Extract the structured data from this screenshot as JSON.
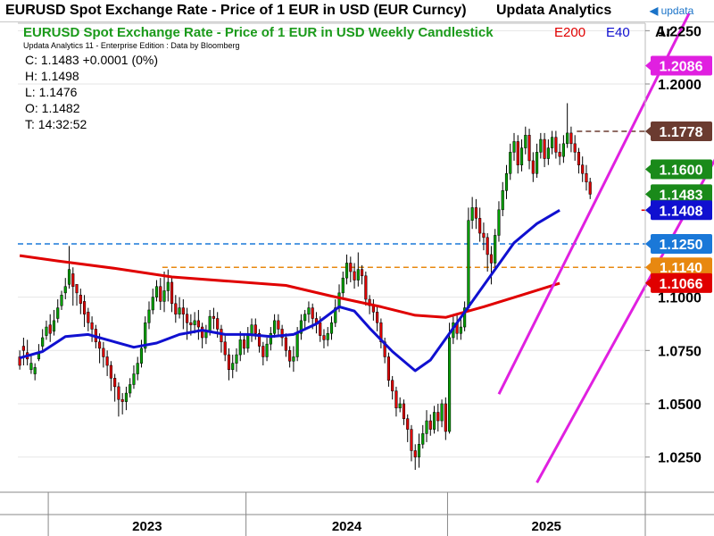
{
  "header": {
    "title": "EURUSD Spot Exchange Rate - Price of 1 EUR in USD (EUR Curncy)",
    "brand": "Updata Analytics",
    "logo_text": "updata"
  },
  "panel": {
    "subtitle": "EURUSD Spot Exchange Rate - Price of 1 EUR in USD Weekly Candlestick",
    "credit": "Updata Analytics 11 - Enterprise Edition : Data by Bloomberg",
    "legend": [
      {
        "name": "E200",
        "color": "#e00000"
      },
      {
        "name": "E40",
        "color": "#1010d0"
      }
    ],
    "axis_corner": "Ar"
  },
  "ohlc": {
    "close": "C: 1.1483 +0.0001 (0%)",
    "high": "H: 1.1498",
    "low": "L: 1.1476",
    "open": "O: 1.1482",
    "time": "T: 14:32:52"
  },
  "colors": {
    "up": "#00a000",
    "down": "#e00000",
    "wick": "#000000",
    "channel": "#e020e0",
    "grid": "#e6e6e6"
  },
  "chart_data": {
    "type": "candlestick",
    "title": "EURUSD Spot Exchange Rate - Price of 1 EUR in USD Weekly Candlestick",
    "y_ticks": [
      1.025,
      1.05,
      1.075,
      1.1,
      1.2,
      1.225
    ],
    "y_tick_labels": [
      "1.0250",
      "1.0500",
      "1.0750",
      "1.1000",
      "1.2000",
      "1.2250"
    ],
    "ylim": [
      1.0085,
      1.2285
    ],
    "x_labels": [
      "2023",
      "2024",
      "2025"
    ],
    "x_boundaries_week": [
      8,
      60,
      113,
      165
    ],
    "weeks": 165,
    "series": [
      {
        "name": "E200",
        "color": "#e00000",
        "points": [
          [
            0,
            1.1195
          ],
          [
            10,
            1.117
          ],
          [
            25,
            1.1135
          ],
          [
            40,
            1.1095
          ],
          [
            55,
            1.1075
          ],
          [
            70,
            1.1055
          ],
          [
            82,
            1.1005
          ],
          [
            95,
            1.0955
          ],
          [
            104,
            1.0915
          ],
          [
            112,
            1.0905
          ],
          [
            122,
            1.0955
          ],
          [
            132,
            1.101
          ],
          [
            142,
            1.1065
          ]
        ]
      },
      {
        "name": "E40",
        "color": "#1010d0",
        "points": [
          [
            0,
            1.0715
          ],
          [
            6,
            1.0745
          ],
          [
            12,
            1.0815
          ],
          [
            18,
            1.0825
          ],
          [
            24,
            1.0795
          ],
          [
            30,
            1.0765
          ],
          [
            36,
            1.0785
          ],
          [
            42,
            1.0825
          ],
          [
            48,
            1.0845
          ],
          [
            54,
            1.0825
          ],
          [
            60,
            1.0825
          ],
          [
            66,
            1.0815
          ],
          [
            72,
            1.0825
          ],
          [
            78,
            1.0875
          ],
          [
            84,
            1.0955
          ],
          [
            88,
            1.0935
          ],
          [
            92,
            1.0855
          ],
          [
            98,
            1.0745
          ],
          [
            104,
            1.0655
          ],
          [
            108,
            1.0705
          ],
          [
            112,
            1.0805
          ],
          [
            118,
            1.0955
          ],
          [
            124,
            1.1105
          ],
          [
            130,
            1.1255
          ],
          [
            136,
            1.1345
          ],
          [
            142,
            1.1408
          ]
        ]
      }
    ],
    "candles": [
      [
        1.072,
        1.068,
        1.066,
        1.075
      ],
      [
        1.077,
        1.075,
        1.068,
        1.081
      ],
      [
        1.074,
        1.071,
        1.068,
        1.08
      ],
      [
        1.066,
        1.069,
        1.064,
        1.073
      ],
      [
        1.064,
        1.067,
        1.061,
        1.069
      ],
      [
        1.071,
        1.074,
        1.07,
        1.078
      ],
      [
        1.077,
        1.081,
        1.075,
        1.085
      ],
      [
        1.082,
        1.086,
        1.08,
        1.089
      ],
      [
        1.087,
        1.083,
        1.079,
        1.092
      ],
      [
        1.084,
        1.089,
        1.082,
        1.094
      ],
      [
        1.09,
        1.095,
        1.088,
        1.099
      ],
      [
        1.096,
        1.101,
        1.094,
        1.103
      ],
      [
        1.102,
        1.105,
        1.099,
        1.109
      ],
      [
        1.106,
        1.113,
        1.104,
        1.124
      ],
      [
        1.111,
        1.105,
        1.096,
        1.114
      ],
      [
        1.106,
        1.102,
        1.096,
        1.106
      ],
      [
        1.101,
        1.097,
        1.092,
        1.104
      ],
      [
        1.098,
        1.092,
        1.086,
        1.101
      ],
      [
        1.093,
        1.088,
        1.084,
        1.095
      ],
      [
        1.088,
        1.085,
        1.079,
        1.091
      ],
      [
        1.085,
        1.079,
        1.076,
        1.087
      ],
      [
        1.079,
        1.076,
        1.069,
        1.083
      ],
      [
        1.076,
        1.072,
        1.067,
        1.079
      ],
      [
        1.072,
        1.068,
        1.063,
        1.075
      ],
      [
        1.068,
        1.062,
        1.056,
        1.07
      ],
      [
        1.062,
        1.058,
        1.051,
        1.064
      ],
      [
        1.058,
        1.052,
        1.044,
        1.06
      ],
      [
        1.052,
        1.051,
        1.045,
        1.055
      ],
      [
        1.051,
        1.055,
        1.047,
        1.058
      ],
      [
        1.055,
        1.059,
        1.053,
        1.062
      ],
      [
        1.059,
        1.064,
        1.057,
        1.068
      ],
      [
        1.064,
        1.069,
        1.061,
        1.072
      ],
      [
        1.069,
        1.076,
        1.067,
        1.08
      ],
      [
        1.076,
        1.088,
        1.074,
        1.091
      ],
      [
        1.088,
        1.094,
        1.085,
        1.098
      ],
      [
        1.094,
        1.1,
        1.092,
        1.104
      ],
      [
        1.1,
        1.105,
        1.098,
        1.108
      ],
      [
        1.105,
        1.098,
        1.094,
        1.109
      ],
      [
        1.098,
        1.103,
        1.093,
        1.112
      ],
      [
        1.103,
        1.107,
        1.098,
        1.113
      ],
      [
        1.107,
        1.097,
        1.093,
        1.11
      ],
      [
        1.097,
        1.092,
        1.088,
        1.101
      ],
      [
        1.092,
        1.095,
        1.09,
        1.1
      ],
      [
        1.095,
        1.092,
        1.085,
        1.099
      ],
      [
        1.092,
        1.088,
        1.08,
        1.095
      ],
      [
        1.088,
        1.087,
        1.082,
        1.092
      ],
      [
        1.087,
        1.089,
        1.083,
        1.093
      ],
      [
        1.089,
        1.086,
        1.08,
        1.094
      ],
      [
        1.086,
        1.081,
        1.076,
        1.088
      ],
      [
        1.081,
        1.084,
        1.078,
        1.087
      ],
      [
        1.084,
        1.091,
        1.082,
        1.094
      ],
      [
        1.091,
        1.09,
        1.085,
        1.095
      ],
      [
        1.09,
        1.085,
        1.081,
        1.093
      ],
      [
        1.085,
        1.079,
        1.074,
        1.087
      ],
      [
        1.079,
        1.073,
        1.07,
        1.082
      ],
      [
        1.073,
        1.066,
        1.061,
        1.076
      ],
      [
        1.066,
        1.069,
        1.062,
        1.073
      ],
      [
        1.069,
        1.073,
        1.065,
        1.076
      ],
      [
        1.073,
        1.08,
        1.07,
        1.084
      ],
      [
        1.08,
        1.076,
        1.073,
        1.083
      ],
      [
        1.076,
        1.082,
        1.074,
        1.086
      ],
      [
        1.082,
        1.087,
        1.079,
        1.09
      ],
      [
        1.087,
        1.083,
        1.08,
        1.09
      ],
      [
        1.083,
        1.077,
        1.074,
        1.085
      ],
      [
        1.077,
        1.072,
        1.068,
        1.079
      ],
      [
        1.072,
        1.078,
        1.07,
        1.081
      ],
      [
        1.078,
        1.083,
        1.075,
        1.086
      ],
      [
        1.083,
        1.089,
        1.081,
        1.092
      ],
      [
        1.089,
        1.085,
        1.082,
        1.092
      ],
      [
        1.085,
        1.081,
        1.077,
        1.087
      ],
      [
        1.081,
        1.075,
        1.072,
        1.083
      ],
      [
        1.075,
        1.07,
        1.067,
        1.077
      ],
      [
        1.07,
        1.072,
        1.065,
        1.077
      ],
      [
        1.072,
        1.083,
        1.07,
        1.086
      ],
      [
        1.083,
        1.089,
        1.08,
        1.092
      ],
      [
        1.089,
        1.092,
        1.085,
        1.094
      ],
      [
        1.092,
        1.095,
        1.088,
        1.098
      ],
      [
        1.095,
        1.09,
        1.085,
        1.097
      ],
      [
        1.09,
        1.088,
        1.083,
        1.093
      ],
      [
        1.088,
        1.082,
        1.079,
        1.091
      ],
      [
        1.082,
        1.08,
        1.076,
        1.085
      ],
      [
        1.08,
        1.083,
        1.077,
        1.086
      ],
      [
        1.083,
        1.088,
        1.08,
        1.091
      ],
      [
        1.088,
        1.095,
        1.086,
        1.099
      ],
      [
        1.095,
        1.102,
        1.093,
        1.106
      ],
      [
        1.102,
        1.109,
        1.1,
        1.112
      ],
      [
        1.109,
        1.116,
        1.106,
        1.12
      ],
      [
        1.116,
        1.112,
        1.107,
        1.119
      ],
      [
        1.112,
        1.108,
        1.104,
        1.116
      ],
      [
        1.108,
        1.113,
        1.105,
        1.121
      ],
      [
        1.113,
        1.11,
        1.106,
        1.115
      ],
      [
        1.11,
        1.099,
        1.096,
        1.112
      ],
      [
        1.099,
        1.096,
        1.092,
        1.101
      ],
      [
        1.096,
        1.093,
        1.089,
        1.099
      ],
      [
        1.093,
        1.088,
        1.084,
        1.096
      ],
      [
        1.088,
        1.079,
        1.076,
        1.09
      ],
      [
        1.079,
        1.072,
        1.069,
        1.081
      ],
      [
        1.072,
        1.061,
        1.058,
        1.074
      ],
      [
        1.061,
        1.056,
        1.052,
        1.063
      ],
      [
        1.056,
        1.048,
        1.044,
        1.058
      ],
      [
        1.048,
        1.05,
        1.046,
        1.053
      ],
      [
        1.05,
        1.043,
        1.04,
        1.052
      ],
      [
        1.043,
        1.038,
        1.032,
        1.045
      ],
      [
        1.038,
        1.028,
        1.023,
        1.04
      ],
      [
        1.028,
        1.025,
        1.019,
        1.031
      ],
      [
        1.025,
        1.031,
        1.02,
        1.036
      ],
      [
        1.031,
        1.036,
        1.029,
        1.04
      ],
      [
        1.036,
        1.042,
        1.032,
        1.047
      ],
      [
        1.042,
        1.038,
        1.035,
        1.045
      ],
      [
        1.038,
        1.046,
        1.036,
        1.049
      ],
      [
        1.046,
        1.042,
        1.037,
        1.05
      ],
      [
        1.042,
        1.05,
        1.039,
        1.052
      ],
      [
        1.05,
        1.037,
        1.033,
        1.053
      ],
      [
        1.037,
        1.081,
        1.036,
        1.088
      ],
      [
        1.081,
        1.088,
        1.078,
        1.091
      ],
      [
        1.088,
        1.083,
        1.08,
        1.092
      ],
      [
        1.083,
        1.086,
        1.08,
        1.09
      ],
      [
        1.086,
        1.095,
        1.084,
        1.098
      ],
      [
        1.095,
        1.136,
        1.093,
        1.142
      ],
      [
        1.136,
        1.142,
        1.132,
        1.147
      ],
      [
        1.142,
        1.137,
        1.132,
        1.146
      ],
      [
        1.137,
        1.13,
        1.126,
        1.142
      ],
      [
        1.13,
        1.128,
        1.122,
        1.135
      ],
      [
        1.128,
        1.12,
        1.112,
        1.13
      ],
      [
        1.12,
        1.116,
        1.106,
        1.124
      ],
      [
        1.116,
        1.129,
        1.113,
        1.132
      ],
      [
        1.129,
        1.141,
        1.126,
        1.145
      ],
      [
        1.141,
        1.15,
        1.138,
        1.154
      ],
      [
        1.15,
        1.158,
        1.146,
        1.162
      ],
      [
        1.158,
        1.168,
        1.155,
        1.172
      ],
      [
        1.168,
        1.173,
        1.164,
        1.177
      ],
      [
        1.173,
        1.162,
        1.158,
        1.176
      ],
      [
        1.162,
        1.17,
        1.159,
        1.174
      ],
      [
        1.17,
        1.176,
        1.167,
        1.18
      ],
      [
        1.176,
        1.164,
        1.16,
        1.179
      ],
      [
        1.164,
        1.158,
        1.154,
        1.168
      ],
      [
        1.158,
        1.168,
        1.156,
        1.172
      ],
      [
        1.168,
        1.174,
        1.165,
        1.177
      ],
      [
        1.174,
        1.165,
        1.161,
        1.177
      ],
      [
        1.165,
        1.17,
        1.162,
        1.174
      ],
      [
        1.17,
        1.175,
        1.167,
        1.178
      ],
      [
        1.175,
        1.168,
        1.165,
        1.178
      ],
      [
        1.168,
        1.166,
        1.162,
        1.172
      ],
      [
        1.166,
        1.172,
        1.163,
        1.176
      ],
      [
        1.172,
        1.177,
        1.17,
        1.191
      ],
      [
        1.177,
        1.172,
        1.168,
        1.18
      ],
      [
        1.172,
        1.168,
        1.164,
        1.176
      ],
      [
        1.168,
        1.162,
        1.158,
        1.17
      ],
      [
        1.162,
        1.158,
        1.154,
        1.166
      ],
      [
        1.158,
        1.154,
        1.15,
        1.162
      ],
      [
        1.154,
        1.1483,
        1.146,
        1.156
      ]
    ],
    "channel_lines": [
      {
        "from": [
          126,
          1.0545
        ],
        "to": [
          176,
          1.233
        ]
      },
      {
        "from": [
          136,
          1.013
        ],
        "to": [
          204,
          1.233
        ]
      }
    ],
    "levels": [
      {
        "value": 1.1778,
        "label": "1.1778",
        "color": "#6b3b30",
        "style": "dashed",
        "from_week": 147
      },
      {
        "value": 1.16,
        "label": "1.1600",
        "color": "#1a8a1a",
        "style": "dashed",
        "from_week": 172
      },
      {
        "value": 1.1408,
        "label": "1.1408",
        "color": "#e00000",
        "style": "dashed",
        "from_week": 164
      },
      {
        "value": 1.125,
        "label": "1.1250",
        "color": "#1a78d8",
        "style": "dashed",
        "from_week": 0
      },
      {
        "value": 1.114,
        "label": "1.1140",
        "color": "#e88810",
        "style": "dashed",
        "from_week": 38
      }
    ],
    "price_tags": [
      {
        "value": 1.2086,
        "label": "1.2086",
        "color": "#e020e0",
        "text_color": "#ffffff"
      },
      {
        "value": 1.1778,
        "label": "1.1778",
        "color": "#6b3b30",
        "text_color": "#ffffff"
      },
      {
        "value": 1.16,
        "label": "1.1600",
        "color": "#1a8a1a",
        "text_color": "#ffffff"
      },
      {
        "value": 1.1483,
        "label": "1.1483",
        "color": "#1a8a1a",
        "text_color": "#ffffff"
      },
      {
        "value": 1.1408,
        "label": "1.1408",
        "color": "#1010d0",
        "text_color": "#ffffff"
      },
      {
        "value": 1.125,
        "label": "1.1250",
        "color": "#1a78d8",
        "text_color": "#ffffff"
      },
      {
        "value": 1.114,
        "label": "1.1140",
        "color": "#e88810",
        "text_color": "#ffffff"
      },
      {
        "value": 1.1066,
        "label": "1.1066",
        "color": "#e00000",
        "text_color": "#ffffff"
      }
    ]
  }
}
